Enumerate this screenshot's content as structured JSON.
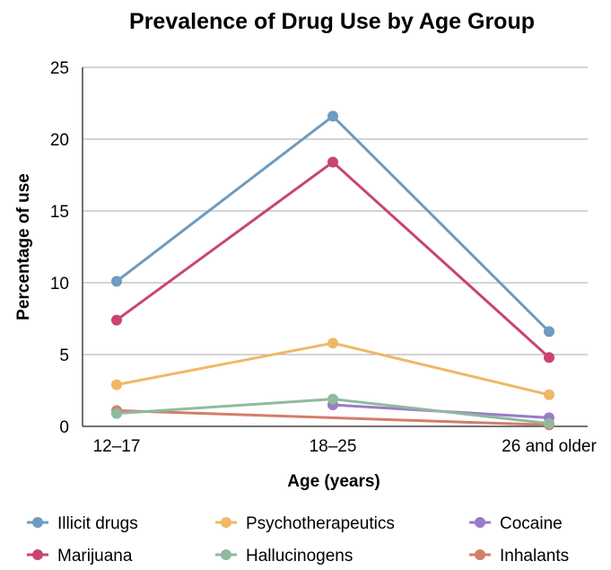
{
  "chart_data": {
    "type": "line",
    "title": "Prevalence of Drug Use by Age Group",
    "xlabel": "Age (years)",
    "ylabel": "Percentage of use",
    "categories": [
      "12–17",
      "18–25",
      "26 and older"
    ],
    "ylim": [
      0,
      25
    ],
    "yticks": [
      "0",
      "5",
      "10",
      "15",
      "20",
      "25"
    ],
    "grid": true,
    "legend_position": "bottom",
    "series": [
      {
        "name": "Illicit drugs",
        "color": "#6e9bbf",
        "values": [
          10.1,
          21.6,
          6.6
        ]
      },
      {
        "name": "Marijuana",
        "color": "#c8456e",
        "values": [
          7.4,
          18.4,
          4.8
        ]
      },
      {
        "name": "Psychotherapeutics",
        "color": "#f0b866",
        "values": [
          2.9,
          5.8,
          2.2
        ]
      },
      {
        "name": "Hallucinogens",
        "color": "#8fba9e",
        "values": [
          0.9,
          1.9,
          0.2
        ]
      },
      {
        "name": "Cocaine",
        "color": "#9a7bc7",
        "values": [
          null,
          1.5,
          0.6
        ]
      },
      {
        "name": "Inhalants",
        "color": "#d47e68",
        "values": [
          1.1,
          null,
          0.1
        ]
      }
    ]
  }
}
